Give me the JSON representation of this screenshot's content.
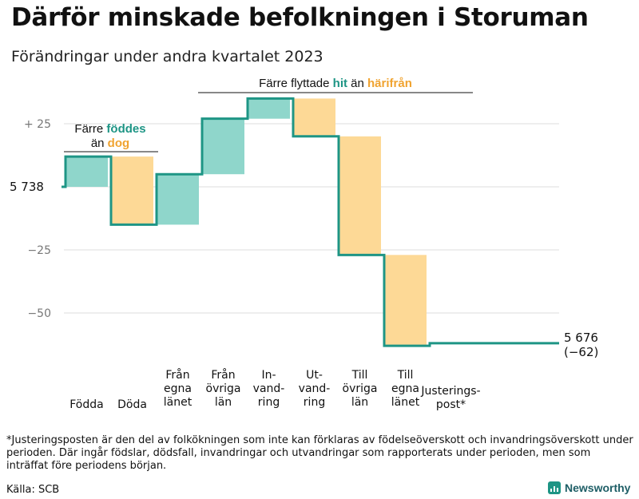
{
  "title": "Därför minskade befolkningen i Storuman",
  "subtitle": "Förändringar under andra kvartalet 2023",
  "colors": {
    "positive": "#1e9585",
    "positive_fill": "#8fd6cb",
    "negative": "#f0a330",
    "negative_fill": "#fdd996",
    "line": "#1e9585",
    "grid": "#dddddd",
    "axis_text": "#777777"
  },
  "annotations": {
    "births": {
      "line1": "Färre",
      "line1_highlight": "föddes",
      "line2": "än",
      "line2_highlight": "dog"
    },
    "migration": {
      "prefix": "Färre flyttade",
      "highlight_in": "hit",
      "middle": "än",
      "highlight_out": "härifrån"
    }
  },
  "chart_data": {
    "type": "waterfall",
    "title": "Därför minskade befolkningen i Storuman",
    "subtitle": "Förändringar under andra kvartalet 2023",
    "start_value": 5738,
    "start_label": "5 738",
    "end_value": 5676,
    "end_label": "5 676",
    "end_change_label": "(−62)",
    "yticks": [
      {
        "value": 25,
        "label": "+  25"
      },
      {
        "value": -25,
        "label": "−25"
      },
      {
        "value": -50,
        "label": "−50"
      }
    ],
    "ylim": [
      -63,
      37
    ],
    "steps": [
      {
        "label": [
          "Födda"
        ],
        "change": 12,
        "kind": "positive"
      },
      {
        "label": [
          "Döda"
        ],
        "change": -27,
        "kind": "negative"
      },
      {
        "label": [
          "Från",
          "egna",
          "länet"
        ],
        "change": 20,
        "kind": "positive"
      },
      {
        "label": [
          "Från",
          "övriga",
          "län"
        ],
        "change": 22,
        "kind": "positive"
      },
      {
        "label": [
          "In-",
          "vand-",
          "ring"
        ],
        "change": 8,
        "kind": "positive"
      },
      {
        "label": [
          "Ut-",
          "vand-",
          "ring"
        ],
        "change": -15,
        "kind": "negative"
      },
      {
        "label": [
          "Till",
          "övriga",
          "län"
        ],
        "change": -47,
        "kind": "negative"
      },
      {
        "label": [
          "Till",
          "egna",
          "länet"
        ],
        "change": -36,
        "kind": "negative"
      },
      {
        "label": [
          "Justerings-",
          "post*"
        ],
        "change": 1,
        "kind": "adjustment"
      }
    ]
  },
  "footnote": "*Justeringsposten är den del av folkökningen som inte kan förklaras av födelseöverskott och invandringsöverskott under perioden. Där ingår födslar, dödsfall, invandringar och utvandringar som rapporterats under perioden, men som inträffat före periodens början.",
  "source": "Källa: SCB",
  "brand": "Newsworthy"
}
